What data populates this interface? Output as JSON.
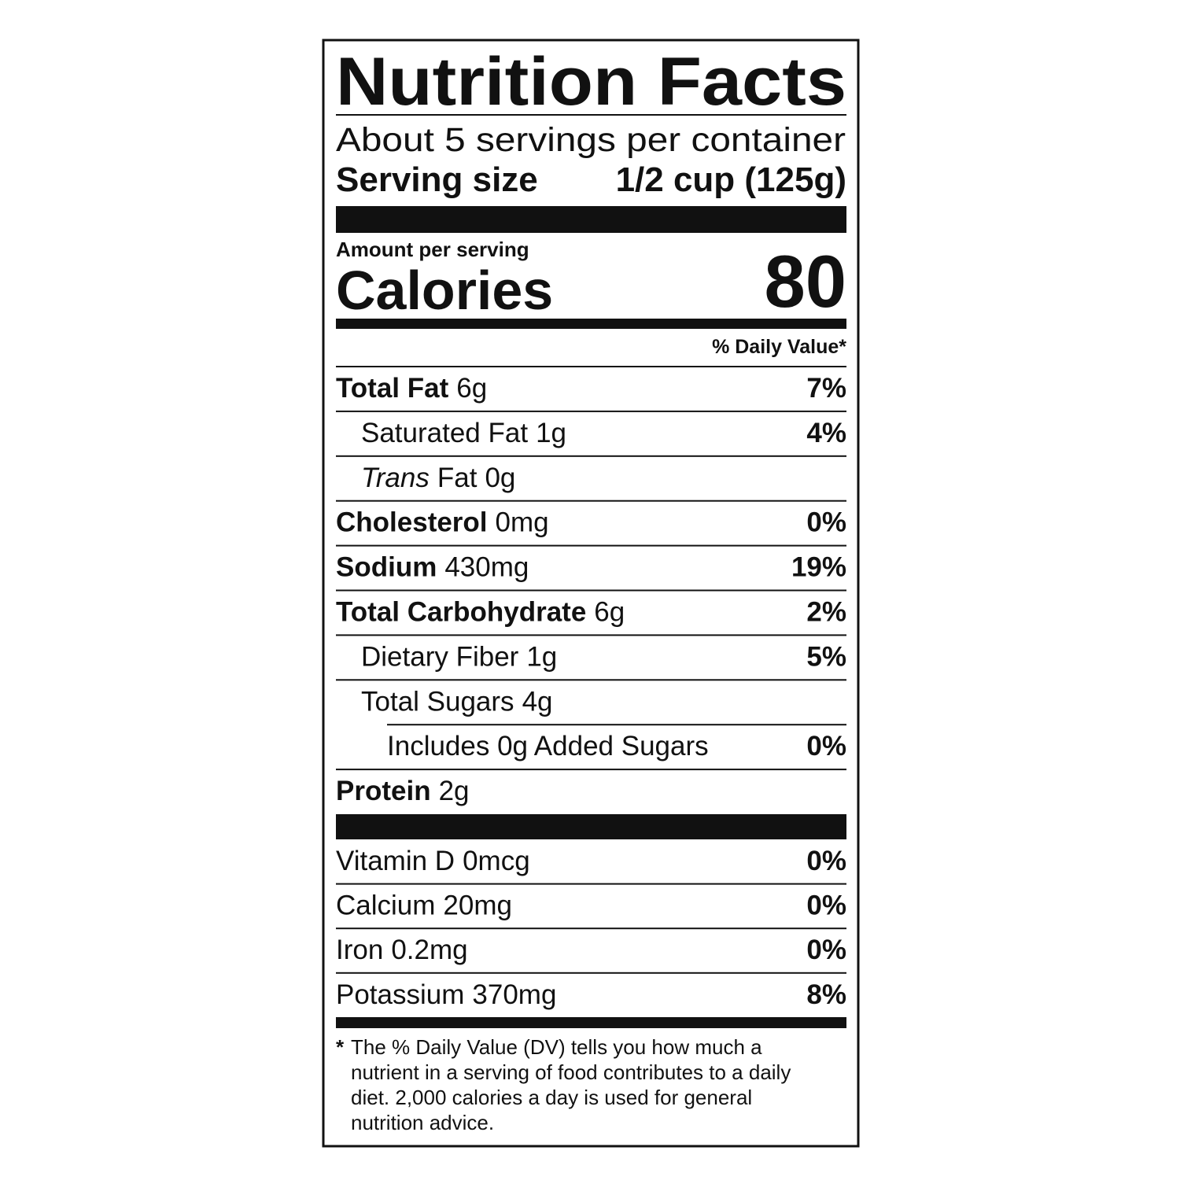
{
  "header": {
    "title": "Nutrition Facts",
    "servings": "About 5 servings per container",
    "serving_size_label": "Serving size",
    "serving_size_value": "1/2 cup (125g)"
  },
  "calories": {
    "amount_per_serving": "Amount per serving",
    "label": "Calories",
    "value": 80
  },
  "daily_value_header": "% Daily Value*",
  "nutrients": [
    {
      "label": "Total Fat",
      "amount": "6g",
      "dv": "7%"
    },
    {
      "label": "Saturated Fat",
      "amount": "1g",
      "dv": "4%"
    },
    {
      "label_italic": "Trans",
      "label": "Fat",
      "amount": "0g"
    },
    {
      "label": "Cholesterol",
      "amount": "0mg",
      "dv": "0%"
    },
    {
      "label": "Sodium",
      "amount": "430mg",
      "dv": "19%"
    },
    {
      "label": "Total Carbohydrate",
      "amount": "6g",
      "dv": "2%"
    },
    {
      "label": "Dietary Fiber",
      "amount": "1g",
      "dv": "5%"
    },
    {
      "label": "Total Sugars",
      "amount": "4g"
    },
    {
      "label": "Includes 0g Added Sugars",
      "dv": "0%"
    },
    {
      "label": "Protein",
      "amount": "2g"
    }
  ],
  "vitamins": [
    {
      "label": "Vitamin D",
      "amount": "0mcg",
      "dv": "0%"
    },
    {
      "label": "Calcium",
      "amount": "20mg",
      "dv": "0%"
    },
    {
      "label": "Iron",
      "amount": "0.2mg",
      "dv": "0%"
    },
    {
      "label": "Potassium",
      "amount": "370mg",
      "dv": "8%"
    }
  ],
  "footnote": {
    "marker": "*",
    "lines": [
      "The % Daily Value (DV) tells you how much a",
      "nutrient in a serving of food contributes to a daily",
      "diet. 2,000 calories a day is used for general",
      "nutrition advice."
    ]
  }
}
